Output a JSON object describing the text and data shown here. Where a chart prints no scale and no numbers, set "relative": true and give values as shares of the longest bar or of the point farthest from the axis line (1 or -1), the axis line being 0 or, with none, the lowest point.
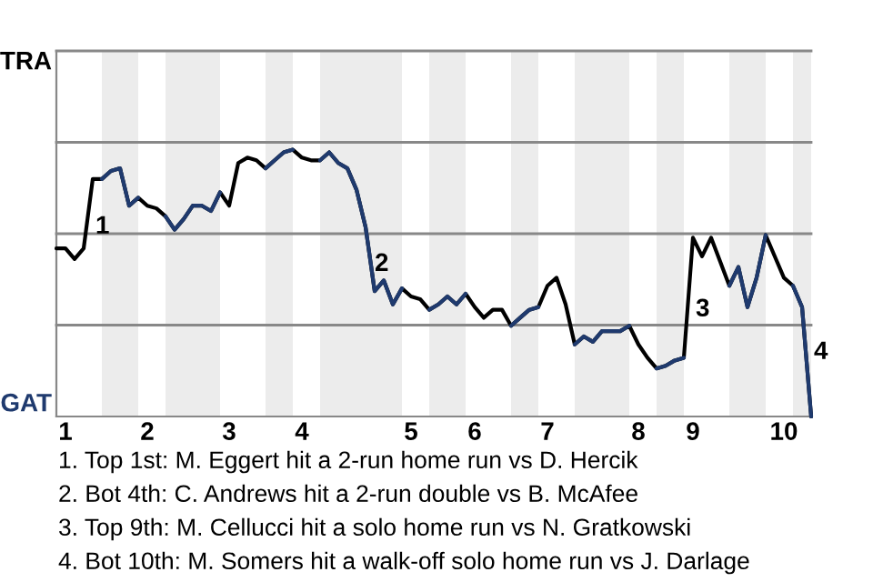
{
  "chart_data": {
    "type": "line",
    "relative": true,
    "categories": [
      null,
      "1",
      null,
      null,
      null,
      null,
      null,
      null,
      null,
      null,
      "2",
      null,
      null,
      null,
      null,
      null,
      null,
      null,
      null,
      "3",
      null,
      null,
      null,
      null,
      null,
      null,
      null,
      "4",
      null,
      null,
      null,
      null,
      null,
      null,
      null,
      null,
      null,
      null,
      null,
      "5",
      null,
      null,
      null,
      null,
      null,
      null,
      "6",
      null,
      null,
      null,
      null,
      null,
      null,
      null,
      "7",
      null,
      null,
      null,
      null,
      null,
      null,
      null,
      null,
      null,
      "8",
      null,
      null,
      null,
      null,
      null,
      "9",
      null,
      null,
      null,
      null,
      null,
      null,
      null,
      null,
      null,
      "10",
      null,
      null,
      null
    ],
    "line_style": "solid",
    "series": [
      {
        "values": [
          0.63,
          0.63,
          0.59,
          0.63,
          0.89,
          0.89,
          0.92,
          0.93,
          0.79,
          0.82,
          0.79,
          0.78,
          0.75,
          0.7,
          0.74,
          0.79,
          0.79,
          0.77,
          0.84,
          0.79,
          0.95,
          0.97,
          0.96,
          0.93,
          0.96,
          0.99,
          1,
          0.97,
          0.96,
          0.96,
          0.99,
          0.95,
          0.93,
          0.85,
          0.71,
          0.47,
          0.51,
          0.42,
          0.48,
          0.45,
          0.44,
          0.4,
          0.42,
          0.45,
          0.42,
          0.46,
          0.41,
          0.37,
          0.4,
          0.4,
          0.34,
          0.37,
          0.4,
          0.41,
          0.49,
          0.52,
          0.42,
          0.27,
          0.3,
          0.28,
          0.32,
          0.32,
          0.32,
          0.34,
          0.27,
          0.22,
          0.18,
          0.19,
          0.21,
          0.22,
          0.67,
          0.6,
          0.67,
          0.58,
          0.49,
          0.56,
          0.41,
          0.52,
          0.68,
          0.6,
          0.52,
          0.49,
          0.41,
          0
        ],
        "color": "#000000"
      },
      {
        "color": "#1f3a6e",
        "values": [
          null,
          null,
          null,
          null,
          null,
          0.89,
          0.92,
          0.93,
          0.79,
          0.82,
          null,
          null,
          0.75,
          0.7,
          0.74,
          0.79,
          0.79,
          0.77,
          0.84,
          null,
          null,
          null,
          null,
          0.93,
          0.96,
          0.99,
          1,
          null,
          null,
          0.96,
          0.99,
          0.95,
          0.93,
          0.85,
          0.71,
          0.47,
          0.51,
          0.42,
          0.48,
          null,
          null,
          0.4,
          0.42,
          0.45,
          0.42,
          0.46,
          null,
          null,
          null,
          null,
          0.34,
          0.37,
          0.4,
          0.41,
          null,
          null,
          null,
          0.27,
          0.3,
          0.28,
          0.32,
          0.32,
          0.32,
          0.34,
          null,
          null,
          0.18,
          0.19,
          0.21,
          0.22,
          null,
          null,
          null,
          null,
          0.49,
          0.56,
          0.41,
          0.52,
          0.68,
          null,
          null,
          0.49,
          0.41,
          0
        ]
      }
    ],
    "ref_lines": [
      {
        "axis": "y",
        "value": 0.3425,
        "color": "#888888"
      },
      {
        "axis": "y",
        "value": 0.685,
        "color": "#888888"
      },
      {
        "axis": "y",
        "value": 1.0275,
        "color": "#888888"
      },
      {
        "axis": "y",
        "value": 1.37,
        "color": "#888888"
      }
    ],
    "annotations": [
      "TRA",
      "GAT",
      "1",
      "2",
      "3",
      "4",
      "1. Top 1st: M. Eggert hit a 2-run home run vs D. Hercik",
      "2. Bot 4th: C. Andrews hit a 2-run double vs B. McAfee",
      "3. Top 9th: M. Cellucci hit a solo home run vs N. Gratkowski",
      "4. Bot 10th: M. Somers hit a walk-off solo home run vs J. Darlage"
    ]
  }
}
